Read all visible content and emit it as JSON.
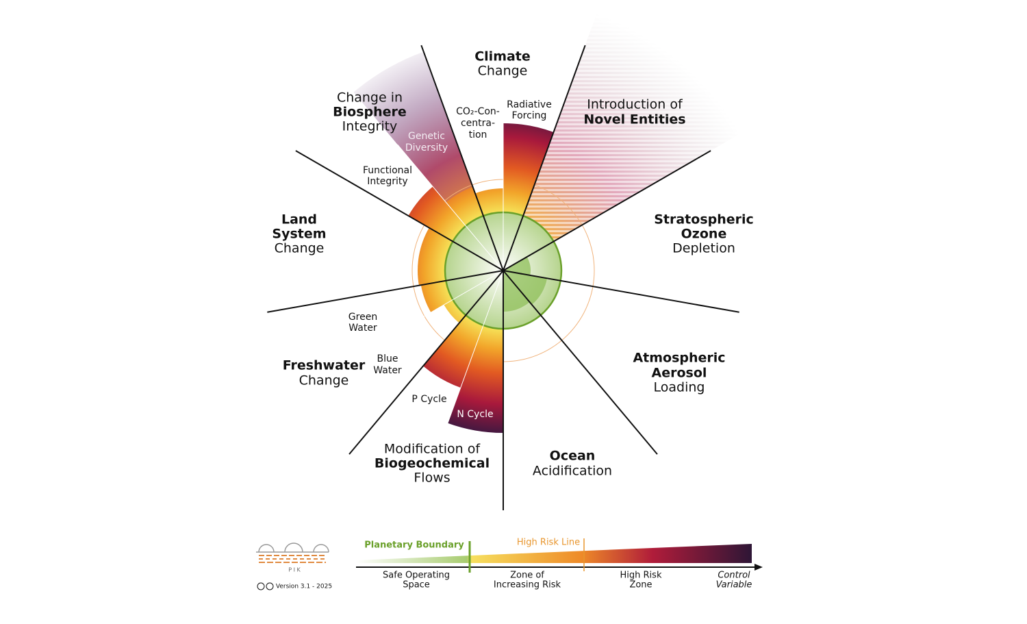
{
  "climate": {
    "title": [
      "Climate",
      "Change"
    ],
    "co2": [
      "CO₂-Con-",
      "centra-",
      "tion"
    ],
    "forcing": [
      "Radiative",
      "Forcing"
    ]
  },
  "novel": {
    "title": [
      "Introduction of",
      "Novel Entities"
    ]
  },
  "biosphere": {
    "title": [
      "Change in",
      "Biosphere",
      "Integrity"
    ],
    "genetic": [
      "Genetic",
      "Diversity"
    ],
    "functional": [
      "Functional",
      "Integrity"
    ]
  },
  "land": {
    "title": [
      "Land",
      "System",
      "Change"
    ]
  },
  "ozone": {
    "title": [
      "Stratospheric",
      "Ozone",
      "Depletion"
    ]
  },
  "freshwater": {
    "title": [
      "Freshwater",
      "Change"
    ],
    "green": [
      "Green",
      "Water"
    ],
    "blue": [
      "Blue",
      "Water"
    ]
  },
  "aerosol": {
    "title": [
      "Atmospheric",
      "Aerosol",
      "Loading"
    ]
  },
  "biogeochemical": {
    "title": [
      "Modification of",
      "Biogeochemical",
      "Flows"
    ],
    "p": "P Cycle",
    "n": "N Cycle"
  },
  "ocean": {
    "title": [
      "Ocean",
      "Acidification"
    ]
  },
  "legend": {
    "boundary": "Planetary Boundary",
    "high_risk_line": "High Risk Line",
    "safe": [
      "Safe Operating",
      "Space"
    ],
    "increasing": [
      "Zone of",
      "Increasing Risk"
    ],
    "high": [
      "High Risk",
      "Zone"
    ],
    "control": [
      "Control",
      "Variable"
    ]
  },
  "footer": {
    "logo": "P I K",
    "version": "Version 3.1 - 2025"
  }
}
